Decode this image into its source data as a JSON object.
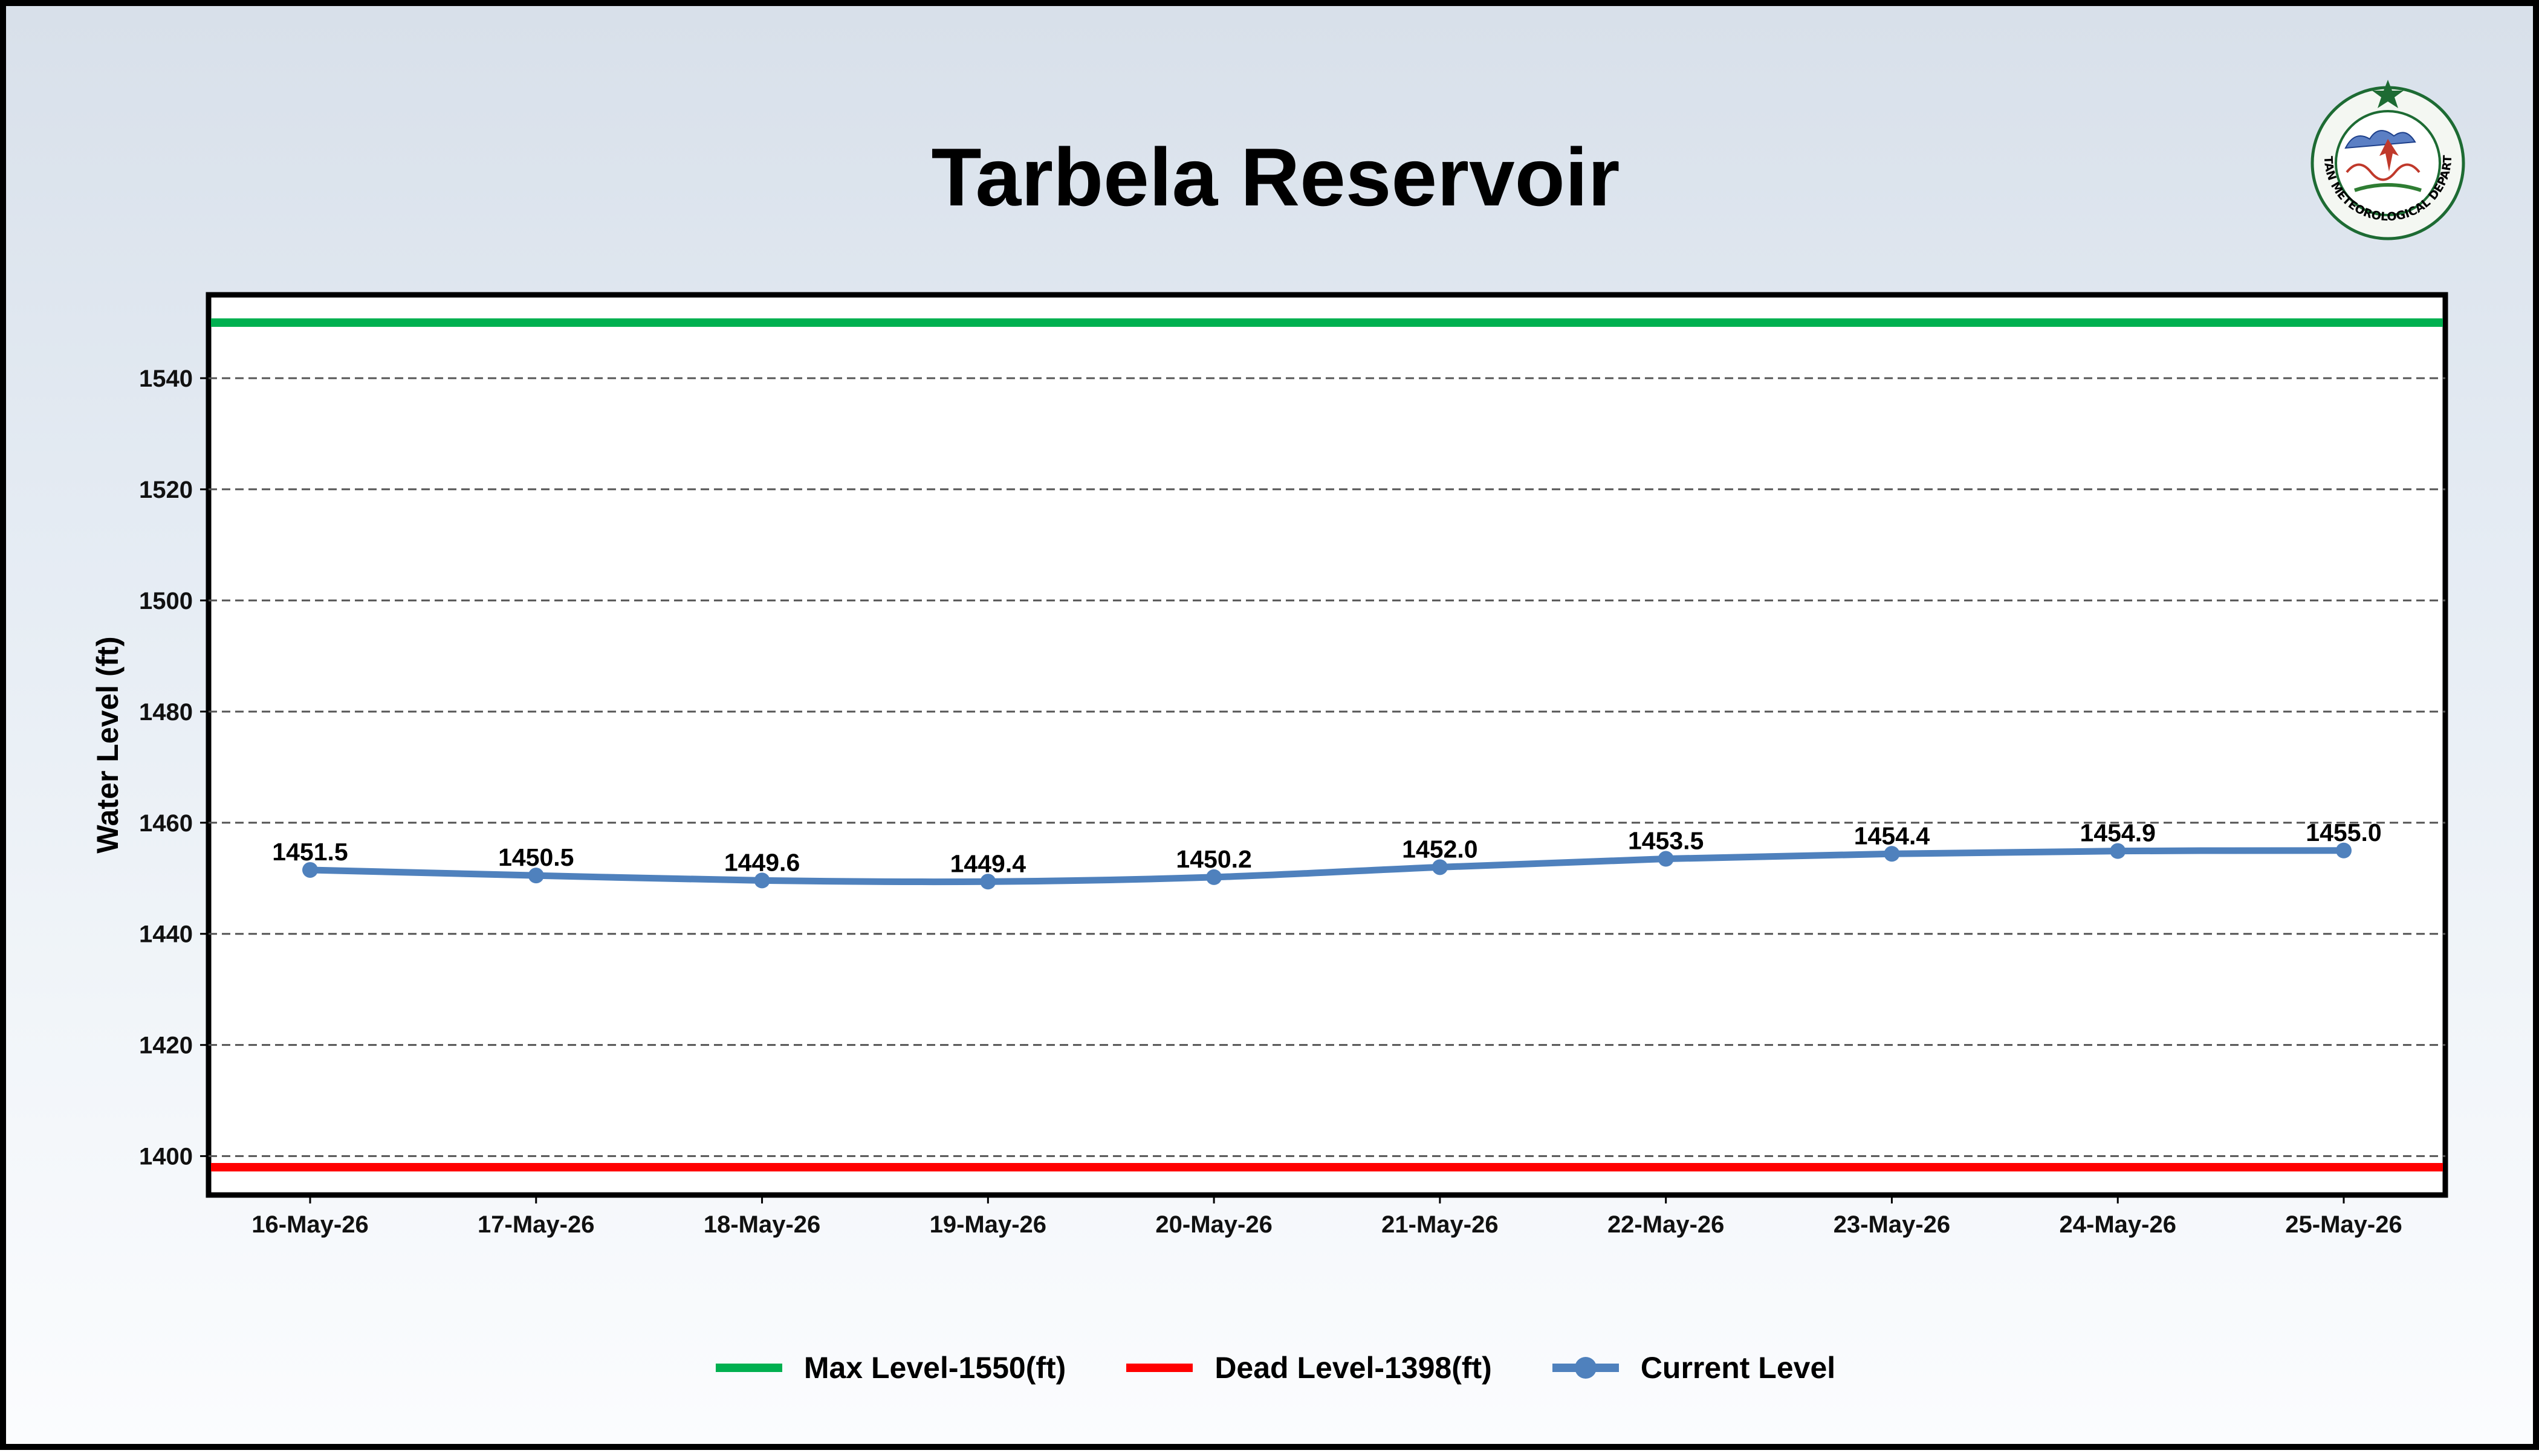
{
  "chart_data": {
    "type": "line",
    "title": "Tarbela Reservoir",
    "xlabel": "",
    "ylabel": "Water Level (ft)",
    "categories": [
      "16-May-26",
      "17-May-26",
      "18-May-26",
      "19-May-26",
      "20-May-26",
      "21-May-26",
      "22-May-26",
      "23-May-26",
      "24-May-26",
      "25-May-26"
    ],
    "series": [
      {
        "name": "Current Level",
        "values": [
          1451.5,
          1450.5,
          1449.6,
          1449.4,
          1450.2,
          1452.0,
          1453.5,
          1454.4,
          1454.9,
          1455.0
        ],
        "labels": [
          "1451.5",
          "1450.5",
          "1449.6",
          "1449.4",
          "1450.2",
          "1452.0",
          "1453.5",
          "1454.4",
          "1454.9",
          "1455.0"
        ],
        "color": "#4f81bd"
      }
    ],
    "reference_lines": [
      {
        "name": "Max Level-1550(ft)",
        "value": 1550,
        "color": "#00b050"
      },
      {
        "name": "Dead Level-1398(ft)",
        "value": 1398,
        "color": "#ff0000"
      }
    ],
    "yticks": [
      1400,
      1420,
      1440,
      1460,
      1480,
      1500,
      1520,
      1540
    ],
    "ylim": [
      1393,
      1555
    ],
    "grid": "horizontal dashed",
    "legend_position": "bottom-center"
  },
  "logo": {
    "text": "PAKISTAN METEOROLOGICAL DEPARTMENT"
  }
}
